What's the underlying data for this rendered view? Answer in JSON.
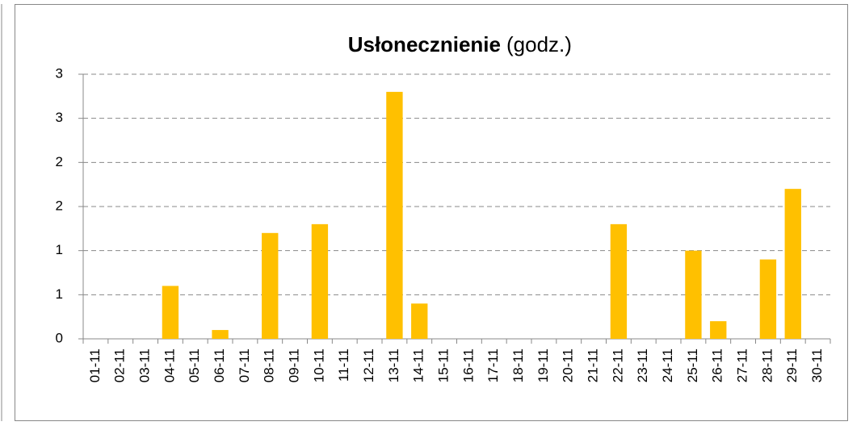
{
  "chart_data": {
    "type": "bar",
    "title": "Usłonecznienie",
    "title_unit": "(godz.)",
    "categories": [
      "01-11",
      "02-11",
      "03-11",
      "04-11",
      "05-11",
      "06-11",
      "07-11",
      "08-11",
      "09-11",
      "10-11",
      "11-11",
      "12-11",
      "13-11",
      "14-11",
      "15-11",
      "16-11",
      "17-11",
      "18-11",
      "19-11",
      "20-11",
      "21-11",
      "22-11",
      "23-11",
      "24-11",
      "25-11",
      "26-11",
      "27-11",
      "28-11",
      "29-11",
      "30-11"
    ],
    "values": [
      0,
      0,
      0,
      0.6,
      0,
      0.1,
      0,
      1.2,
      0,
      1.3,
      0,
      0,
      2.8,
      0.4,
      0,
      0,
      0,
      0,
      0,
      0,
      0,
      1.3,
      0,
      0,
      1.0,
      0.2,
      0,
      0.9,
      1.7,
      0
    ],
    "color": "#ffc000",
    "ylim": [
      0,
      3
    ],
    "yticks": [
      0,
      {
        "value": 0.5,
        "label": "1"
      },
      1,
      {
        "value": 1.5,
        "label": "2"
      },
      2,
      {
        "value": 2.5,
        "label": "3"
      },
      3
    ],
    "grid": true
  }
}
